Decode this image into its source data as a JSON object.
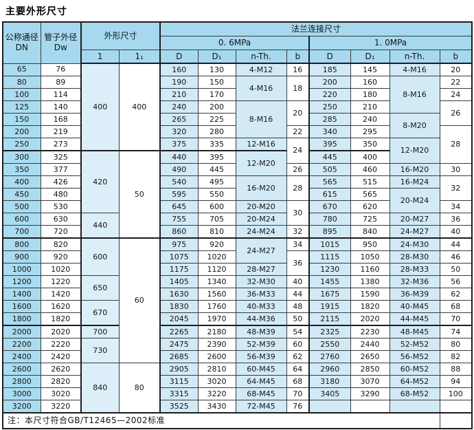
{
  "title": "主要外形尺寸",
  "note": "注：本尺寸符合GB/T12465—2002标准",
  "header": {
    "dn_zh": "公称通径",
    "dn_en": "DN",
    "dw_zh": "管子外径",
    "dw_en": "Dw",
    "outline": "外形尺寸",
    "flange": "法兰连接尺寸",
    "p06": "0. 6MPa",
    "p10": "1. 0MPa",
    "l": "1",
    "l1": "1₁",
    "sub": [
      "D",
      "D₁",
      "n-Th.",
      "b"
    ]
  },
  "colors": {
    "header_blue": "#a6d9ef",
    "dn_column_blue": "#a9dcf1",
    "light_column_blue": "#d2eaf6",
    "outline_column_blue": "#dceef8",
    "white": "#ffffff",
    "border_dark": "#1c1c1c",
    "border_inner": "#3a3a3a"
  },
  "column_keys": [
    "dn",
    "dw",
    "l",
    "l1",
    "d-06",
    "d1-06",
    "nth-06",
    "b-06",
    "d-10",
    "d1-10",
    "nth-10",
    "b-10"
  ],
  "group_end_rows": [
    6,
    13,
    20
  ],
  "rows": [
    [
      "65",
      "76",
      {
        "v": "400",
        "s": 7
      },
      {
        "v": "400",
        "s": 7
      },
      "160",
      "130",
      "4-M12",
      "16",
      "185",
      "145",
      "4-M16",
      "20"
    ],
    [
      "80",
      "89",
      null,
      null,
      "190",
      "150",
      {
        "v": "4-M16",
        "s": 2
      },
      {
        "v": "18",
        "s": 2
      },
      "200",
      "160",
      {
        "v": "8-M16",
        "s": 3
      },
      "22"
    ],
    [
      "100",
      "114",
      null,
      null,
      "210",
      "170",
      null,
      null,
      "220",
      "180",
      null,
      "24"
    ],
    [
      "125",
      "140",
      null,
      null,
      "240",
      "200",
      {
        "v": "8-M16",
        "s": 3
      },
      {
        "v": "20",
        "s": 2
      },
      "250",
      "210",
      null,
      {
        "v": "26",
        "s": 2
      }
    ],
    [
      "150",
      "168",
      null,
      null,
      "265",
      "225",
      null,
      null,
      "285",
      "240",
      {
        "v": "8-M20",
        "s": 2
      },
      null
    ],
    [
      "200",
      "219",
      null,
      null,
      "320",
      "280",
      null,
      "22",
      "340",
      "295",
      null,
      {
        "v": "28",
        "s": 3
      }
    ],
    [
      "250",
      "273",
      null,
      null,
      "375",
      "335",
      "12-M16",
      {
        "v": "24",
        "s": 2
      },
      "395",
      "350",
      {
        "v": "12-M20",
        "s": 2
      },
      null
    ],
    [
      "300",
      "325",
      {
        "v": "420",
        "s": 5
      },
      {
        "v": "50",
        "s": 7
      },
      "440",
      "395",
      {
        "v": "12-M20",
        "s": 2
      },
      null,
      "445",
      "400",
      null,
      null
    ],
    [
      "350",
      "377",
      null,
      null,
      "490",
      "445",
      null,
      "26",
      "505",
      "460",
      "16-M20",
      "30"
    ],
    [
      "400",
      "426",
      null,
      null,
      "540",
      "495",
      {
        "v": "16-M20",
        "s": 2
      },
      {
        "v": "28",
        "s": 2
      },
      "565",
      "515",
      "16-M24",
      {
        "v": "32",
        "s": 2
      }
    ],
    [
      "450",
      "480",
      null,
      null,
      "595",
      "550",
      null,
      null,
      "615",
      "565",
      {
        "v": "20-M24",
        "s": 2
      },
      null
    ],
    [
      "500",
      "530",
      null,
      null,
      "645",
      "600",
      "20-M20",
      {
        "v": "30",
        "s": 2
      },
      "670",
      "620",
      null,
      "34"
    ],
    [
      "600",
      "630",
      {
        "v": "440",
        "s": 2
      },
      null,
      "755",
      "705",
      "20-M24",
      null,
      "780",
      "725",
      "20-M27",
      "36"
    ],
    [
      "700",
      "720",
      null,
      null,
      "860",
      "810",
      "24-M24",
      "32",
      "895",
      "840",
      "24-M27",
      "40"
    ],
    [
      "800",
      "820",
      {
        "v": "600",
        "s": 3
      },
      {
        "v": "60",
        "s": 10
      },
      "975",
      "920",
      {
        "v": "24-M27",
        "s": 2
      },
      "34",
      "1015",
      "950",
      "24-M30",
      "44"
    ],
    [
      "900",
      "920",
      null,
      null,
      "1075",
      "1020",
      null,
      {
        "v": "36",
        "s": 2
      },
      "1115",
      "1050",
      "28-M30",
      "46"
    ],
    [
      "1000",
      "1020",
      null,
      null,
      "1175",
      "1120",
      "28-M27",
      null,
      "1230",
      "1160",
      "28-M33",
      "50"
    ],
    [
      "1200",
      "1220",
      {
        "v": "650",
        "s": 2
      },
      null,
      "1405",
      "1340",
      "32-M30",
      "40",
      "1455",
      "1380",
      "32-M36",
      "56"
    ],
    [
      "1400",
      "1420",
      null,
      null,
      "1630",
      "1560",
      "36-M33",
      "44",
      "1675",
      "1590",
      "36-M39",
      "62"
    ],
    [
      "1600",
      "1620",
      {
        "v": "670",
        "s": 2
      },
      null,
      "1830",
      "1760",
      "40-M33",
      "48",
      "1915",
      "1820",
      "40-M45",
      "68"
    ],
    [
      "1800",
      "1820",
      null,
      null,
      "2045",
      "1970",
      "44-M36",
      "50",
      "2115",
      "2020",
      "44-M45",
      "70"
    ],
    [
      "2000",
      "2020",
      "700",
      null,
      "2265",
      "2180",
      "48-M39",
      "54",
      "2325",
      "2230",
      "48-M45",
      "74"
    ],
    [
      "2200",
      "2220",
      {
        "v": "730",
        "s": 2
      },
      null,
      "2475",
      "2390",
      "52-M39",
      "60",
      "2550",
      "2440",
      "52-M52",
      "80"
    ],
    [
      "2400",
      "2420",
      null,
      null,
      "2685",
      "2600",
      "56-M39",
      "62",
      "2760",
      "2650",
      "56-M52",
      "82"
    ],
    [
      "2600",
      "2620",
      {
        "v": "840",
        "s": 4
      },
      {
        "v": "80",
        "s": 4
      },
      "2905",
      "2810",
      "60-M45",
      "64",
      "2960",
      "2850",
      "60-M52",
      "88"
    ],
    [
      "2800",
      "2820",
      null,
      null,
      "3115",
      "3020",
      "64-M45",
      "68",
      "3180",
      "3070",
      "64-M52",
      "94"
    ],
    [
      "3000",
      "3020",
      null,
      null,
      "3315",
      "3220",
      "68-M45",
      "70",
      "3405",
      "3290",
      "68-M52",
      "100"
    ],
    [
      "3200",
      "3220",
      null,
      null,
      "3525",
      "3430",
      "72-M45",
      "76",
      "",
      "",
      "",
      ""
    ]
  ]
}
